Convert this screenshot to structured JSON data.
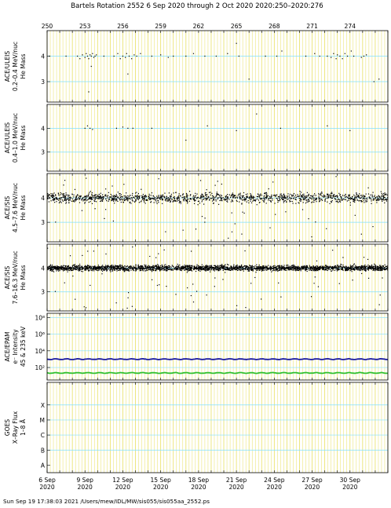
{
  "header": {
    "title": "Bartels Rotation 2552    6 Sep 2020 through 2 Oct 2020    2020:250–2020:276"
  },
  "footer": {
    "text": "Sun Sep 19 17:38:03 2021    /Users/mew/IDL/MW/sis055/sis055aa_2552.ps"
  },
  "chart_data": {
    "type": "scatter",
    "x_range_doy": [
      250,
      277
    ],
    "top_axis_ticks": [
      "250",
      "253",
      "256",
      "259",
      "262",
      "265",
      "268",
      "271",
      "274"
    ],
    "top_axis_tick_doy": [
      250,
      253,
      256,
      259,
      262,
      265,
      268,
      271,
      274
    ],
    "bottom_axis_ticks": [
      {
        "doy": 250,
        "line1": "6 Sep",
        "line2": "2020"
      },
      {
        "doy": 253,
        "line1": "9 Sep",
        "line2": "2020"
      },
      {
        "doy": 256,
        "line1": "12 Sep",
        "line2": "2020"
      },
      {
        "doy": 259,
        "line1": "15 Sep",
        "line2": "2020"
      },
      {
        "doy": 262,
        "line1": "18 Sep",
        "line2": "2020"
      },
      {
        "doy": 265,
        "line1": "21 Sep",
        "line2": "2020"
      },
      {
        "doy": 268,
        "line1": "24 Sep",
        "line2": "2020"
      },
      {
        "doy": 271,
        "line1": "27 Sep",
        "line2": "2020"
      },
      {
        "doy": 274,
        "line1": "30 Sep",
        "line2": "2020"
      }
    ],
    "grid": "yellow vertical lines every 6 hours, cyan horizontal guide lines",
    "colors": {
      "day_grid": "#e8e060",
      "guide": "#80e0ff",
      "proton_line": "#1a1aa0",
      "electron_line": "#30c030",
      "points": "#000000"
    },
    "panels": [
      {
        "id": "uleis-low",
        "ylabel": [
          "ACE/ULEIS",
          "0.2–0.4 MeV/nuc",
          "He Mass"
        ],
        "ylim": [
          2.2,
          5.0
        ],
        "yticks": [
          "3",
          "4"
        ],
        "ytick_values": [
          3,
          4
        ],
        "guide_lines": [
          3,
          4
        ],
        "density": "sparse, clusters near mass 4 on 253, 256 and 273",
        "points": [
          [
            250.2,
            4.0
          ],
          [
            251.5,
            4.0
          ],
          [
            252.4,
            4.0
          ],
          [
            252.6,
            3.9
          ],
          [
            252.8,
            4.05
          ],
          [
            253.0,
            3.95
          ],
          [
            253.1,
            4.1
          ],
          [
            253.2,
            4.0
          ],
          [
            253.3,
            3.9
          ],
          [
            253.4,
            4.05
          ],
          [
            253.5,
            4.0
          ],
          [
            253.6,
            4.1
          ],
          [
            253.7,
            3.95
          ],
          [
            253.8,
            4.0
          ],
          [
            253.9,
            4.05
          ],
          [
            253.5,
            3.6
          ],
          [
            253.3,
            2.6
          ],
          [
            254.5,
            4.0
          ],
          [
            255.3,
            4.0
          ],
          [
            255.6,
            4.1
          ],
          [
            255.8,
            3.9
          ],
          [
            256.0,
            4.0
          ],
          [
            256.2,
            3.95
          ],
          [
            256.3,
            4.1
          ],
          [
            256.5,
            4.0
          ],
          [
            256.7,
            3.9
          ],
          [
            256.9,
            4.05
          ],
          [
            257.1,
            4.0
          ],
          [
            257.4,
            4.1
          ],
          [
            256.4,
            3.3
          ],
          [
            258.3,
            4.0
          ],
          [
            259.0,
            4.05
          ],
          [
            259.6,
            3.95
          ],
          [
            260.0,
            4.0
          ],
          [
            261.0,
            4.0
          ],
          [
            261.6,
            4.1
          ],
          [
            262.5,
            4.0
          ],
          [
            263.4,
            4.0
          ],
          [
            264.3,
            4.1
          ],
          [
            265.0,
            4.5
          ],
          [
            265.2,
            4.0
          ],
          [
            266.0,
            3.1
          ],
          [
            267.3,
            4.0
          ],
          [
            268.2,
            4.0
          ],
          [
            268.6,
            4.2
          ],
          [
            270.5,
            4.0
          ],
          [
            271.2,
            4.1
          ],
          [
            271.6,
            4.0
          ],
          [
            272.2,
            4.0
          ],
          [
            272.5,
            3.95
          ],
          [
            272.7,
            4.1
          ],
          [
            272.9,
            3.9
          ],
          [
            273.0,
            4.05
          ],
          [
            273.2,
            4.0
          ],
          [
            273.4,
            3.9
          ],
          [
            273.6,
            4.1
          ],
          [
            273.8,
            4.0
          ],
          [
            274.1,
            4.2
          ],
          [
            274.3,
            4.0
          ],
          [
            274.9,
            3.95
          ],
          [
            275.1,
            4.0
          ],
          [
            275.3,
            4.05
          ],
          [
            275.9,
            3.0
          ],
          [
            276.3,
            3.1
          ]
        ]
      },
      {
        "id": "uleis-high",
        "ylabel": [
          "ACE/ULEIS",
          "0.4–1.0 MeV/nuc",
          "He Mass"
        ],
        "ylim": [
          2.2,
          5.0
        ],
        "yticks": [
          "3",
          "4"
        ],
        "ytick_values": [
          3,
          4
        ],
        "guide_lines": [
          3,
          4
        ],
        "density": "very sparse",
        "points": [
          [
            253.0,
            4.0
          ],
          [
            253.2,
            4.1
          ],
          [
            253.4,
            4.0
          ],
          [
            253.6,
            3.95
          ],
          [
            255.5,
            4.0
          ],
          [
            256.0,
            4.05
          ],
          [
            256.4,
            4.0
          ],
          [
            256.8,
            4.0
          ],
          [
            258.3,
            4.0
          ],
          [
            261.0,
            3.5
          ],
          [
            262.7,
            4.1
          ],
          [
            265.0,
            3.9
          ],
          [
            266.6,
            4.6
          ],
          [
            268.5,
            4.0
          ],
          [
            272.2,
            4.1
          ],
          [
            274.0,
            3.9
          ]
        ]
      },
      {
        "id": "sis-low",
        "ylabel": [
          "ACE/SIS",
          "4.5–7.6 MeV/nuc",
          "He Mass"
        ],
        "ylim": [
          2.2,
          5.0
        ],
        "yticks": [
          "3",
          "4"
        ],
        "ytick_values": [
          3,
          4
        ],
        "guide_lines": [
          3,
          4
        ],
        "density": "dense band around mass 4 throughout",
        "band_center": 4.0,
        "band_spread": 0.35,
        "band_count": 1400,
        "outlier_count": 60
      },
      {
        "id": "sis-high",
        "ylabel": [
          "ACE/SIS",
          "7.6–16.3 MeV/nuc",
          "He Mass"
        ],
        "ylim": [
          2.2,
          5.0
        ],
        "yticks": [
          "3",
          "4"
        ],
        "ytick_values": [
          3,
          4
        ],
        "guide_lines": [
          3,
          4
        ],
        "density": "very dense band around mass 4 throughout",
        "band_center": 4.0,
        "band_spread": 0.2,
        "band_count": 2600,
        "outlier_count": 70
      },
      {
        "id": "epam",
        "ylabel": [
          "ACE/EPAM",
          "e⁻ Intensity",
          "45 & 235 keV"
        ],
        "scale": "log",
        "ylim_exp": [
          0.5,
          8.5
        ],
        "yticks": [
          "10²",
          "10⁴",
          "10⁶",
          "10⁸"
        ],
        "ytick_exponents": [
          2,
          4,
          6,
          8
        ],
        "guide_lines_exp": [
          2,
          4,
          6,
          8
        ],
        "series": [
          {
            "color": "#1a1aa0",
            "level_exp": 3.0
          },
          {
            "color": "#30c030",
            "level_exp": 1.35
          }
        ]
      },
      {
        "id": "goes",
        "ylabel": [
          "GOES",
          "X–Ray Flux",
          "1–8 Å"
        ],
        "ylim": [
          0,
          6
        ],
        "yticks": [
          "A",
          "B",
          "C",
          "M",
          "X"
        ],
        "ytick_values": [
          0.5,
          1.5,
          2.5,
          3.5,
          4.5
        ],
        "guide_lines": [
          1.5,
          2.5,
          3.5,
          4.5
        ]
      }
    ]
  }
}
